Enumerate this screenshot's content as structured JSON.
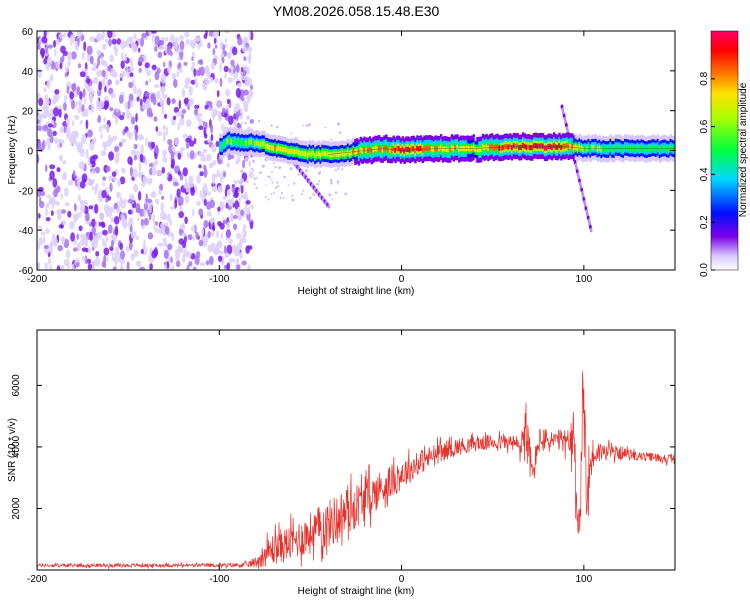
{
  "title": "YM08.2026.058.15.48.E30",
  "chart_data": [
    {
      "type": "heatmap",
      "xlabel": "Height of straight line (km)",
      "ylabel": "Frequency (Hz)",
      "xlim": [
        -200,
        150
      ],
      "ylim": [
        -60,
        60
      ],
      "xticks": [
        -200,
        -100,
        0,
        100
      ],
      "yticks": [
        -60,
        -40,
        -20,
        0,
        20,
        40,
        60
      ],
      "noise_region_x": [
        -200,
        -85
      ],
      "ridge": {
        "x": [
          -100,
          -95,
          -90,
          -80,
          -70,
          -60,
          -50,
          -40,
          -30,
          -20,
          -10,
          0,
          20,
          40,
          60,
          80,
          90,
          100,
          120,
          150
        ],
        "freq": [
          2,
          5,
          4,
          4,
          1,
          -1,
          -2,
          -2,
          -1,
          0,
          1,
          0,
          1,
          1,
          2,
          2,
          2,
          1,
          1,
          1
        ],
        "amp": [
          0.4,
          0.55,
          0.5,
          0.6,
          0.75,
          0.7,
          0.7,
          0.7,
          0.72,
          0.8,
          0.8,
          1.0,
          0.8,
          0.75,
          0.95,
          1.0,
          0.9,
          0.55,
          0.5,
          0.5
        ]
      },
      "streaks": [
        {
          "x": [
            -60,
            -40
          ],
          "freq": [
            -5,
            -28
          ]
        },
        {
          "x": [
            88,
            104
          ],
          "freq": [
            22,
            -40
          ]
        }
      ],
      "colorbar": {
        "label": "Normalized spectral amplitude",
        "ticks": [
          0.0,
          0.2,
          0.4,
          0.6,
          0.8
        ],
        "range": [
          0,
          1
        ]
      }
    },
    {
      "type": "line",
      "xlabel": "Height of straight line (km)",
      "ylabel": "SNR (10 * v/v)",
      "xlim": [
        -200,
        150
      ],
      "ylim": [
        0,
        7800
      ],
      "xticks": [
        -200,
        -100,
        0,
        100
      ],
      "yticks": [
        2000,
        4000,
        6000
      ],
      "series": [
        {
          "name": "SNR",
          "color": "#e8302a",
          "x": [
            -200,
            -150,
            -100,
            -85,
            -80,
            -75,
            -70,
            -60,
            -50,
            -40,
            -30,
            -20,
            -10,
            0,
            10,
            20,
            30,
            40,
            50,
            60,
            65,
            68,
            70,
            72,
            75,
            85,
            90,
            95,
            97,
            99,
            100,
            102,
            105,
            110,
            120,
            130,
            140,
            150
          ],
          "mean": [
            150,
            150,
            150,
            170,
            250,
            500,
            700,
            900,
            1200,
            1500,
            1900,
            2300,
            2700,
            3100,
            3500,
            3800,
            4000,
            4100,
            4150,
            4150,
            4000,
            4600,
            3800,
            3000,
            4200,
            4200,
            4200,
            3800,
            1000,
            4500,
            5000,
            2800,
            3800,
            3850,
            3800,
            3700,
            3650,
            3600
          ],
          "amp": [
            60,
            60,
            60,
            80,
            200,
            400,
            550,
            600,
            700,
            800,
            800,
            700,
            600,
            500,
            400,
            350,
            300,
            250,
            250,
            250,
            400,
            1200,
            700,
            500,
            450,
            350,
            400,
            900,
            1200,
            2000,
            1800,
            1500,
            500,
            300,
            200,
            150,
            150,
            150
          ]
        }
      ]
    }
  ]
}
